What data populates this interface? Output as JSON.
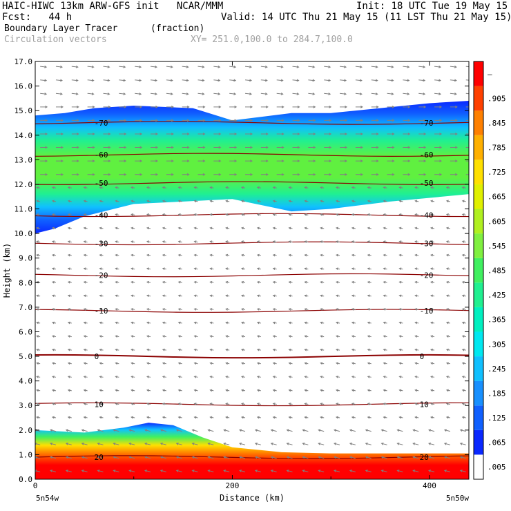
{
  "header": {
    "line1_left": "HAIC-HIWC 13km ARW-GFS init   NCAR/MMM",
    "line1_right": "Init: 18 UTC Tue 19 May 15",
    "line2_left": "Fcst:   44 h",
    "line2_right": "Valid: 14 UTC Thu 21 May 15 (11 LST Thu 21 May 15)",
    "line3_left": "Boundary Layer Tracer",
    "line3_mid": "(fraction)",
    "line4_left": "Circulation vectors",
    "line4_mid": "XY= 251.0,100.0 to 284.7,100.0"
  },
  "colors": {
    "background": "#ffffff",
    "contour": "#8b0000",
    "vector": "#808080"
  },
  "chart_data": {
    "type": "heatmap",
    "title": "Boundary Layer Tracer",
    "units": "(fraction)",
    "xlabel": "Distance (km)",
    "ylabel": "Height (km)",
    "xlim": [
      0,
      440
    ],
    "ylim": [
      0,
      17
    ],
    "x_ticks": [
      "0",
      "200",
      "400"
    ],
    "x_tick_values": [
      0,
      200,
      400
    ],
    "y_ticks": [
      "0.0",
      "1.0",
      "2.0",
      "3.0",
      "4.0",
      "5.0",
      "6.0",
      "7.0",
      "8.0",
      "9.0",
      "10.0",
      "11.0",
      "12.0",
      "13.0",
      "14.0",
      "15.0",
      "16.0",
      "17.0"
    ],
    "x_end_labels": {
      "left": "5n54w",
      "right": "5n50w"
    },
    "colorbar": {
      "labels": [
        ".005",
        ".065",
        ".125",
        ".185",
        ".245",
        ".305",
        ".365",
        ".425",
        ".485",
        ".545",
        ".605",
        ".665",
        ".725",
        ".785",
        ".845",
        ".905",
        "–"
      ],
      "colors": [
        "#ffffff",
        "#0a28ff",
        "#1060ff",
        "#1890ff",
        "#10c0ff",
        "#00e8f0",
        "#00f0c0",
        "#20f090",
        "#40f060",
        "#80f040",
        "#b0f020",
        "#e0f000",
        "#ffe000",
        "#ffb000",
        "#ff8000",
        "#ff4000",
        "#ff0000"
      ]
    },
    "temperature_contours": [
      {
        "value": 20,
        "height_km": 0.9,
        "label": "20"
      },
      {
        "value": 10,
        "height_km": 3.05,
        "label": "10"
      },
      {
        "value": 0,
        "height_km": 5.0,
        "label": "0"
      },
      {
        "value": -10,
        "height_km": 6.85,
        "label": "-10"
      },
      {
        "value": -20,
        "height_km": 8.3,
        "label": "-20"
      },
      {
        "value": -30,
        "height_km": 9.6,
        "label": "-30"
      },
      {
        "value": -40,
        "height_km": 10.75,
        "label": "-40"
      },
      {
        "value": -50,
        "height_km": 12.05,
        "label": "-50"
      },
      {
        "value": -60,
        "height_km": 13.2,
        "label": "-60"
      },
      {
        "value": -70,
        "height_km": 14.5,
        "label": "-70"
      }
    ],
    "tracer_upper_layer": {
      "bottom_km": [
        [
          0,
          10.0
        ],
        [
          20,
          10.2
        ],
        [
          50,
          10.7
        ],
        [
          100,
          11.2
        ],
        [
          150,
          11.3
        ],
        [
          200,
          11.4
        ],
        [
          260,
          10.9
        ],
        [
          300,
          11.0
        ],
        [
          360,
          11.3
        ],
        [
          440,
          11.6
        ]
      ],
      "top_km": [
        [
          0,
          14.8
        ],
        [
          30,
          14.9
        ],
        [
          60,
          15.1
        ],
        [
          100,
          15.2
        ],
        [
          160,
          15.1
        ],
        [
          200,
          14.6
        ],
        [
          260,
          14.9
        ],
        [
          300,
          14.9
        ],
        [
          350,
          15.1
        ],
        [
          400,
          15.3
        ],
        [
          440,
          15.4
        ]
      ],
      "core_value": 0.545
    },
    "tracer_boundary_layer": {
      "top_km": [
        [
          0,
          2.0
        ],
        [
          50,
          1.9
        ],
        [
          90,
          2.1
        ],
        [
          115,
          2.3
        ],
        [
          140,
          2.2
        ],
        [
          170,
          1.7
        ],
        [
          200,
          1.3
        ],
        [
          250,
          1.1
        ],
        [
          300,
          1.05
        ],
        [
          440,
          1.05
        ]
      ],
      "core_value": 0.905
    }
  }
}
